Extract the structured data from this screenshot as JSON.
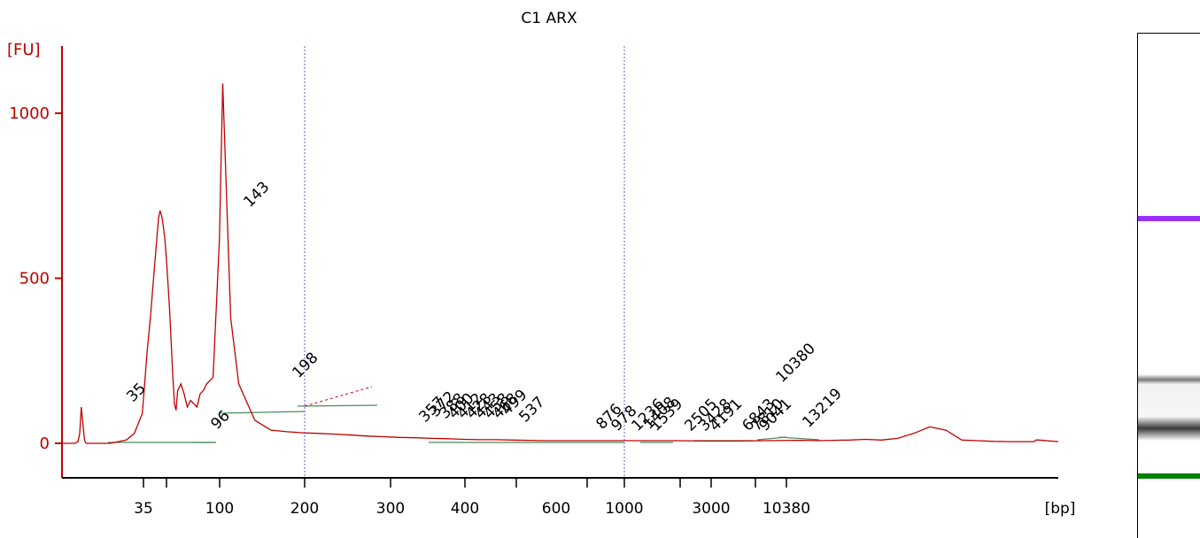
{
  "chart_data": {
    "type": "line",
    "title": "C1 ARX",
    "ylabel": "[FU]",
    "xlabel": "[bp]",
    "ylim": [
      -110,
      1200
    ],
    "yticks": [
      0,
      500,
      1000
    ],
    "xticks": [
      "35",
      "100",
      "200",
      "300",
      "400",
      "600",
      "1000",
      "3000",
      "10380"
    ],
    "series": [
      {
        "color": "#c00000",
        "x": [
          0,
          4,
          8,
          10,
          11,
          12,
          14,
          15,
          16,
          17,
          18,
          19,
          20,
          21,
          22,
          23,
          24,
          25,
          27,
          30,
          35,
          40,
          45,
          50,
          53,
          55,
          57,
          59,
          60,
          61,
          62,
          63,
          64,
          65,
          66,
          67,
          68,
          69,
          70,
          71,
          72,
          74,
          76,
          78,
          80,
          82,
          84,
          86,
          88,
          90,
          94,
          98,
          100,
          105,
          110,
          120,
          130,
          140,
          150,
          160,
          170,
          180,
          190,
          200,
          210,
          220,
          230,
          240,
          250,
          260,
          270,
          280,
          290,
          300,
          320,
          340,
          360,
          380,
          400,
          420,
          440,
          460,
          470,
          480,
          490,
          500,
          510,
          520,
          530,
          540,
          550,
          560,
          570,
          580,
          590,
          600,
          605,
          606,
          608,
          620
        ],
        "y": [
          0,
          0,
          0,
          5,
          30,
          110,
          10,
          0,
          0,
          0,
          0,
          0,
          0,
          0,
          0,
          0,
          0,
          0,
          0,
          0,
          5,
          10,
          30,
          90,
          280,
          380,
          500,
          620,
          680,
          705,
          690,
          660,
          620,
          560,
          480,
          400,
          300,
          200,
          120,
          100,
          160,
          180,
          150,
          110,
          130,
          120,
          110,
          150,
          160,
          180,
          200,
          620,
          1090,
          380,
          180,
          70,
          40,
          35,
          32,
          30,
          28,
          25,
          22,
          20,
          18,
          17,
          15,
          14,
          12,
          11,
          11,
          10,
          9,
          8,
          8,
          8,
          8,
          8,
          7,
          7,
          8,
          9,
          8,
          9,
          10,
          12,
          10,
          15,
          30,
          50,
          40,
          10,
          8,
          6,
          5,
          5,
          5,
          10,
          10,
          5
        ]
      }
    ],
    "peak_labels": [
      {
        "text": "35",
        "color": "#008000"
      },
      {
        "text": "96",
        "color": "#000000"
      },
      {
        "text": "143",
        "color": "#000000"
      },
      {
        "text": "198",
        "color": "#000000"
      },
      {
        "text": "357",
        "color": "#000000"
      },
      {
        "text": "372",
        "color": "#000000"
      },
      {
        "text": "388",
        "color": "#000000"
      },
      {
        "text": "400",
        "color": "#000000"
      },
      {
        "text": "412",
        "color": "#000000"
      },
      {
        "text": "428",
        "color": "#000000"
      },
      {
        "text": "443",
        "color": "#000000"
      },
      {
        "text": "458",
        "color": "#000000"
      },
      {
        "text": "468",
        "color": "#000000"
      },
      {
        "text": "499",
        "color": "#000000"
      },
      {
        "text": "537",
        "color": "#000000"
      },
      {
        "text": "876",
        "color": "#000000"
      },
      {
        "text": "978",
        "color": "#000000"
      },
      {
        "text": "1236",
        "color": "#000000"
      },
      {
        "text": "1408",
        "color": "#000000"
      },
      {
        "text": "1539",
        "color": "#000000"
      },
      {
        "text": "2505",
        "color": "#000000"
      },
      {
        "text": "3428",
        "color": "#000000"
      },
      {
        "text": "4191",
        "color": "#000000"
      },
      {
        "text": "6843",
        "color": "#000000"
      },
      {
        "text": "7810",
        "color": "#000000"
      },
      {
        "text": "9041",
        "color": "#000000"
      },
      {
        "text": "10380",
        "color": "#9b30ff"
      },
      {
        "text": "13219",
        "color": "#000000"
      }
    ],
    "colors": {
      "axis": "#c00000",
      "trace": "#c00000",
      "lower_marker": "#008000",
      "upper_marker": "#9b30ff",
      "baseline": "#4a8a5a",
      "guide_line": "#6a5acd"
    }
  }
}
